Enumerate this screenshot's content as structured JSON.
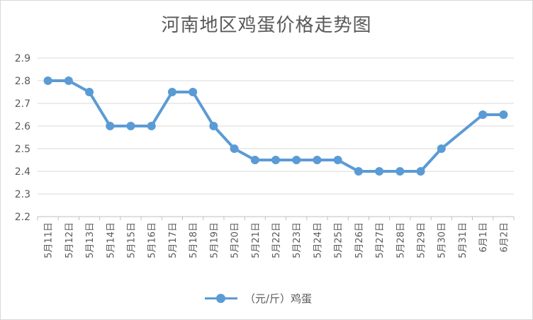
{
  "chart_data": {
    "type": "line",
    "title": "河南地区鸡蛋价格走势图",
    "xlabel": "",
    "ylabel": "",
    "ylim": [
      2.2,
      2.9
    ],
    "yticks": [
      "2.2",
      "2.3",
      "2.4",
      "2.5",
      "2.6",
      "2.7",
      "2.8",
      "2.9"
    ],
    "grid": true,
    "legend_position": "bottom",
    "categories": [
      "5月11日",
      "5月12日",
      "5月13日",
      "5月14日",
      "5月15日",
      "5月16日",
      "5月17日",
      "5月18日",
      "5月19日",
      "5月20日",
      "5月21日",
      "5月22日",
      "5月23日",
      "5月24日",
      "5月25日",
      "5月26日",
      "5月27日",
      "5月28日",
      "5月29日",
      "5月30日",
      "5月31日",
      "6月1日",
      "6月2日"
    ],
    "series": [
      {
        "name": "（元/斤）鸡蛋",
        "color": "#5b9bd5",
        "values": [
          2.8,
          2.8,
          2.75,
          2.6,
          2.6,
          2.6,
          2.75,
          2.75,
          2.6,
          2.5,
          2.45,
          2.45,
          2.45,
          2.45,
          2.45,
          2.4,
          2.4,
          2.4,
          2.4,
          2.5,
          null,
          2.65,
          2.65
        ]
      }
    ]
  }
}
